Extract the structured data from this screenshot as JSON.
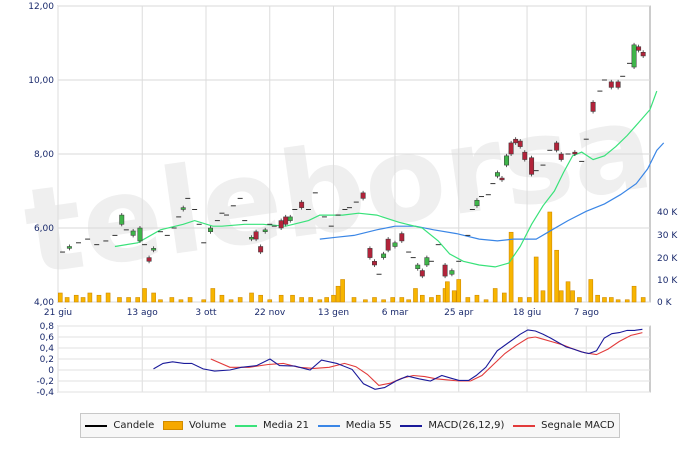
{
  "chart_data": [
    {
      "type": "candlestick",
      "price_axis": {
        "ticks": [
          "12,00",
          "10,00",
          "8,00",
          "6,00",
          "4,00"
        ],
        "range": [
          4,
          12
        ]
      },
      "volume_axis": {
        "ticks": [
          "40 K",
          "30 K",
          "20 K",
          "10 K",
          "0 K"
        ],
        "range": [
          0,
          50
        ]
      },
      "x_ticks": [
        "21 giu",
        "13 ago",
        "3 ott",
        "22 nov",
        "13 gen",
        "6 mar",
        "25 apr",
        "18 giu",
        "7 ago"
      ],
      "x_tick_index": [
        0,
        37,
        65,
        93,
        121,
        148,
        176,
        206,
        232
      ],
      "candles": [
        [
          2,
          5.35,
          5.35
        ],
        [
          5,
          5.45,
          5.5
        ],
        [
          9,
          5.6,
          5.6
        ],
        [
          13,
          5.7,
          5.68
        ],
        [
          17,
          5.55,
          5.55
        ],
        [
          21,
          5.65,
          5.65
        ],
        [
          25,
          5.8,
          5.8
        ],
        [
          28,
          6.1,
          6.35
        ],
        [
          30,
          5.95,
          5.95
        ],
        [
          33,
          5.8,
          5.92
        ],
        [
          36,
          5.65,
          6.0
        ],
        [
          38,
          5.55,
          5.55
        ],
        [
          40,
          5.2,
          5.1
        ],
        [
          42,
          5.4,
          5.45
        ],
        [
          45,
          5.9,
          5.9
        ],
        [
          48,
          5.8,
          5.8
        ],
        [
          51,
          6.0,
          6.0
        ],
        [
          53,
          6.3,
          6.3
        ],
        [
          55,
          6.5,
          6.55
        ],
        [
          57,
          6.8,
          6.8
        ],
        [
          60,
          6.5,
          6.5
        ],
        [
          62,
          6.1,
          6.1
        ],
        [
          64,
          5.6,
          5.6
        ],
        [
          67,
          5.9,
          6.0
        ],
        [
          70,
          6.2,
          6.2
        ],
        [
          72,
          6.4,
          6.4
        ],
        [
          74,
          6.35,
          6.35
        ],
        [
          77,
          6.6,
          6.6
        ],
        [
          80,
          6.8,
          6.8
        ],
        [
          82,
          6.2,
          6.2
        ],
        [
          85,
          5.7,
          5.75
        ],
        [
          87,
          5.9,
          5.7
        ],
        [
          89,
          5.5,
          5.35
        ],
        [
          91,
          5.9,
          5.95
        ],
        [
          93,
          6.1,
          6.1
        ],
        [
          95,
          6.05,
          6.05
        ],
        [
          98,
          6.2,
          6.0
        ],
        [
          100,
          6.3,
          6.1
        ],
        [
          102,
          6.2,
          6.3
        ],
        [
          104,
          6.5,
          6.5
        ],
        [
          107,
          6.7,
          6.55
        ],
        [
          110,
          6.5,
          6.5
        ],
        [
          113,
          6.95,
          6.95
        ],
        [
          117,
          6.3,
          6.3
        ],
        [
          120,
          6.05,
          6.05
        ],
        [
          123,
          6.35,
          6.35
        ],
        [
          126,
          6.5,
          6.5
        ],
        [
          128,
          6.55,
          6.55
        ],
        [
          131,
          6.7,
          6.7
        ],
        [
          134,
          6.95,
          6.8
        ],
        [
          137,
          5.45,
          5.2
        ],
        [
          139,
          5.1,
          5.0
        ],
        [
          141,
          4.75,
          4.75
        ],
        [
          143,
          5.2,
          5.3
        ],
        [
          145,
          5.7,
          5.4
        ],
        [
          148,
          5.5,
          5.6
        ],
        [
          151,
          5.85,
          5.65
        ],
        [
          154,
          5.35,
          5.35
        ],
        [
          156,
          5.2,
          5.2
        ],
        [
          158,
          4.9,
          5.0
        ],
        [
          160,
          4.85,
          4.7
        ],
        [
          162,
          5.0,
          5.2
        ],
        [
          164,
          5.1,
          5.1
        ],
        [
          167,
          5.55,
          5.55
        ],
        [
          170,
          5.0,
          4.7
        ],
        [
          173,
          4.75,
          4.85
        ],
        [
          176,
          5.1,
          5.1
        ],
        [
          180,
          5.8,
          5.8
        ],
        [
          182,
          6.5,
          6.5
        ],
        [
          184,
          6.6,
          6.75
        ],
        [
          186,
          6.85,
          6.85
        ],
        [
          189,
          6.9,
          6.9
        ],
        [
          191,
          7.2,
          7.2
        ],
        [
          193,
          7.4,
          7.5
        ],
        [
          195,
          7.35,
          7.3
        ],
        [
          197,
          7.7,
          7.95
        ],
        [
          199,
          8.3,
          8.0
        ],
        [
          201,
          8.4,
          8.3
        ],
        [
          203,
          8.35,
          8.2
        ],
        [
          205,
          8.05,
          7.85
        ],
        [
          208,
          7.9,
          7.45
        ],
        [
          210,
          7.55,
          7.55
        ],
        [
          213,
          7.7,
          7.7
        ],
        [
          216,
          8.1,
          8.1
        ],
        [
          219,
          8.3,
          8.1
        ],
        [
          221,
          8.0,
          7.85
        ],
        [
          224,
          8.0,
          8.0
        ],
        [
          227,
          8.05,
          8.0
        ],
        [
          230,
          7.8,
          7.8
        ],
        [
          232,
          8.4,
          8.4
        ],
        [
          235,
          9.4,
          9.15
        ],
        [
          238,
          9.7,
          9.7
        ],
        [
          240,
          10.0,
          10.0
        ],
        [
          243,
          9.95,
          9.8
        ],
        [
          246,
          9.95,
          9.8
        ],
        [
          248,
          10.1,
          10.1
        ],
        [
          251,
          10.45,
          10.45
        ],
        [
          253,
          10.35,
          10.95
        ],
        [
          255,
          10.9,
          10.8
        ],
        [
          257,
          10.75,
          10.65
        ]
      ],
      "volume": [
        [
          1,
          4
        ],
        [
          4,
          2
        ],
        [
          8,
          3
        ],
        [
          11,
          2
        ],
        [
          14,
          4
        ],
        [
          18,
          3
        ],
        [
          22,
          4
        ],
        [
          27,
          2
        ],
        [
          31,
          2
        ],
        [
          35,
          2
        ],
        [
          38,
          6
        ],
        [
          42,
          4
        ],
        [
          45,
          1
        ],
        [
          50,
          2
        ],
        [
          54,
          1
        ],
        [
          58,
          2
        ],
        [
          64,
          1
        ],
        [
          68,
          6
        ],
        [
          72,
          3
        ],
        [
          76,
          1
        ],
        [
          80,
          2
        ],
        [
          85,
          4
        ],
        [
          89,
          3
        ],
        [
          93,
          1
        ],
        [
          98,
          3
        ],
        [
          103,
          3
        ],
        [
          107,
          2
        ],
        [
          111,
          2
        ],
        [
          115,
          1
        ],
        [
          118,
          2
        ],
        [
          121,
          3
        ],
        [
          123,
          7
        ],
        [
          125,
          10
        ],
        [
          130,
          2
        ],
        [
          135,
          1
        ],
        [
          139,
          2
        ],
        [
          143,
          1
        ],
        [
          147,
          2
        ],
        [
          151,
          2
        ],
        [
          154,
          1
        ],
        [
          157,
          6
        ],
        [
          160,
          3
        ],
        [
          164,
          2
        ],
        [
          167,
          3
        ],
        [
          170,
          6
        ],
        [
          171,
          9
        ],
        [
          174,
          5
        ],
        [
          176,
          10
        ],
        [
          180,
          2
        ],
        [
          184,
          3
        ],
        [
          188,
          1
        ],
        [
          192,
          6
        ],
        [
          196,
          4
        ],
        [
          199,
          31
        ],
        [
          203,
          2
        ],
        [
          207,
          2
        ],
        [
          210,
          20
        ],
        [
          213,
          5
        ],
        [
          216,
          40
        ],
        [
          219,
          23
        ],
        [
          221,
          5
        ],
        [
          224,
          9
        ],
        [
          226,
          5
        ],
        [
          229,
          2
        ],
        [
          234,
          10
        ],
        [
          237,
          3
        ],
        [
          240,
          2
        ],
        [
          243,
          2
        ],
        [
          246,
          1
        ],
        [
          250,
          1
        ],
        [
          253,
          7
        ],
        [
          257,
          2
        ]
      ],
      "media_21": [
        [
          25,
          5.5
        ],
        [
          35,
          5.6
        ],
        [
          45,
          5.95
        ],
        [
          55,
          6.1
        ],
        [
          60,
          6.2
        ],
        [
          68,
          6.05
        ],
        [
          72,
          6.05
        ],
        [
          82,
          6.1
        ],
        [
          90,
          6.1
        ],
        [
          100,
          6.05
        ],
        [
          110,
          6.2
        ],
        [
          115,
          6.35
        ],
        [
          125,
          6.35
        ],
        [
          132,
          6.4
        ],
        [
          140,
          6.35
        ],
        [
          150,
          6.15
        ],
        [
          160,
          6.0
        ],
        [
          167,
          5.65
        ],
        [
          172,
          5.3
        ],
        [
          178,
          5.1
        ],
        [
          185,
          5.0
        ],
        [
          192,
          4.95
        ],
        [
          198,
          5.05
        ],
        [
          203,
          5.5
        ],
        [
          208,
          6.1
        ],
        [
          213,
          6.6
        ],
        [
          218,
          7.0
        ],
        [
          222,
          7.5
        ],
        [
          226,
          7.95
        ],
        [
          230,
          8.05
        ],
        [
          235,
          7.85
        ],
        [
          240,
          7.95
        ],
        [
          245,
          8.2
        ],
        [
          250,
          8.5
        ],
        [
          255,
          8.85
        ],
        [
          260,
          9.2
        ],
        [
          263,
          9.7
        ]
      ],
      "media_55": [
        [
          115,
          5.7
        ],
        [
          122,
          5.75
        ],
        [
          130,
          5.8
        ],
        [
          140,
          5.95
        ],
        [
          148,
          6.05
        ],
        [
          157,
          6.05
        ],
        [
          165,
          5.95
        ],
        [
          175,
          5.85
        ],
        [
          185,
          5.7
        ],
        [
          193,
          5.65
        ],
        [
          200,
          5.7
        ],
        [
          210,
          5.7
        ],
        [
          217,
          5.95
        ],
        [
          224,
          6.2
        ],
        [
          232,
          6.45
        ],
        [
          240,
          6.65
        ],
        [
          247,
          6.9
        ],
        [
          254,
          7.2
        ],
        [
          259,
          7.6
        ],
        [
          263,
          8.1
        ],
        [
          266,
          8.3
        ]
      ],
      "macd_axis": {
        "ticks": [
          "0,8",
          "0,6",
          "0,4",
          "0,2",
          "0",
          "-0,2",
          "-0,4"
        ],
        "range": [
          -0.4,
          0.8
        ]
      },
      "macd": [
        [
          50,
          0.02
        ],
        [
          55,
          0.12
        ],
        [
          60,
          0.15
        ],
        [
          66,
          0.12
        ],
        [
          70,
          0.12
        ],
        [
          76,
          0.02
        ],
        [
          82,
          -0.02
        ],
        [
          90,
          0.0
        ],
        [
          96,
          0.05
        ],
        [
          104,
          0.08
        ],
        [
          111,
          0.2
        ],
        [
          116,
          0.08
        ],
        [
          124,
          0.07
        ],
        [
          132,
          0.0
        ],
        [
          138,
          0.18
        ],
        [
          146,
          0.12
        ],
        [
          154,
          0.01
        ],
        [
          160,
          -0.25
        ],
        [
          166,
          -0.35
        ],
        [
          171,
          -0.32
        ],
        [
          177,
          -0.2
        ],
        [
          183,
          -0.11
        ],
        [
          189,
          -0.16
        ],
        [
          195,
          -0.2
        ],
        [
          201,
          -0.1
        ],
        [
          206,
          -0.15
        ],
        [
          210,
          -0.19
        ],
        [
          215,
          -0.19
        ],
        [
          219,
          -0.1
        ],
        [
          224,
          0.05
        ],
        [
          230,
          0.35
        ],
        [
          236,
          0.5
        ],
        [
          242,
          0.65
        ],
        [
          246,
          0.73
        ],
        [
          250,
          0.71
        ],
        [
          254,
          0.65
        ],
        [
          258,
          0.58
        ],
        [
          262,
          0.5
        ],
        [
          266,
          0.42
        ],
        [
          270,
          0.38
        ],
        [
          274,
          0.33
        ],
        [
          278,
          0.3
        ],
        [
          282,
          0.35
        ],
        [
          286,
          0.58
        ],
        [
          290,
          0.66
        ],
        [
          294,
          0.68
        ],
        [
          298,
          0.72
        ],
        [
          302,
          0.72
        ],
        [
          306,
          0.74
        ]
      ],
      "signal": [
        [
          80,
          0.2
        ],
        [
          90,
          0.05
        ],
        [
          100,
          0.05
        ],
        [
          110,
          0.1
        ],
        [
          118,
          0.12
        ],
        [
          126,
          0.05
        ],
        [
          134,
          0.03
        ],
        [
          142,
          0.05
        ],
        [
          150,
          0.12
        ],
        [
          156,
          0.06
        ],
        [
          162,
          -0.08
        ],
        [
          168,
          -0.28
        ],
        [
          174,
          -0.24
        ],
        [
          180,
          -0.15
        ],
        [
          186,
          -0.1
        ],
        [
          192,
          -0.12
        ],
        [
          198,
          -0.16
        ],
        [
          204,
          -0.18
        ],
        [
          210,
          -0.2
        ],
        [
          216,
          -0.2
        ],
        [
          222,
          -0.1
        ],
        [
          228,
          0.1
        ],
        [
          234,
          0.3
        ],
        [
          240,
          0.45
        ],
        [
          246,
          0.58
        ],
        [
          250,
          0.6
        ],
        [
          254,
          0.56
        ],
        [
          258,
          0.52
        ],
        [
          264,
          0.46
        ],
        [
          270,
          0.38
        ],
        [
          276,
          0.31
        ],
        [
          282,
          0.28
        ],
        [
          288,
          0.38
        ],
        [
          294,
          0.52
        ],
        [
          300,
          0.63
        ],
        [
          306,
          0.68
        ]
      ],
      "legend": [
        {
          "label": "Candele",
          "color": "#000000",
          "kind": "line"
        },
        {
          "label": "Volume",
          "color": "#f6a800",
          "kind": "bar"
        },
        {
          "label": "Media 21",
          "color": "#39e27a",
          "kind": "line"
        },
        {
          "label": "Media 55",
          "color": "#3a86e6",
          "kind": "line"
        },
        {
          "label": "MACD(26,12,9)",
          "color": "#1a1a9a",
          "kind": "line"
        },
        {
          "label": "Segnale MACD",
          "color": "#e23b3b",
          "kind": "line"
        }
      ],
      "watermark": "teleborsa"
    }
  ]
}
